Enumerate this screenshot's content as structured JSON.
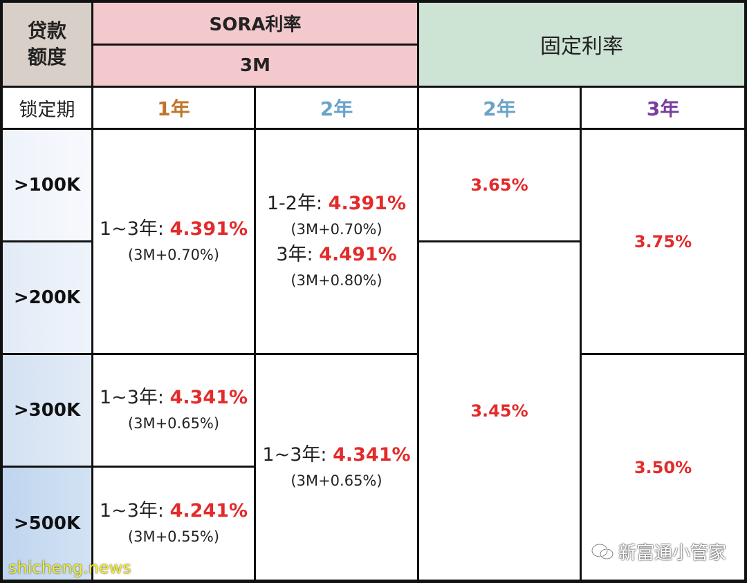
{
  "header": {
    "loan_amount": "贷款\n额度",
    "sora": "SORA利率",
    "sora_sub": "3M",
    "fixed": "固定利率",
    "lock_period": "锁定期"
  },
  "terms": {
    "sora_1y": "1年",
    "sora_2y": "2年",
    "fixed_2y": "2年",
    "fixed_3y": "3年"
  },
  "term_colors": {
    "sora_1y": "#c0752a",
    "sora_2y": "#6aa3c9",
    "fixed_2y": "#6aa3c9",
    "fixed_3y": "#7a3f9e"
  },
  "rows": [
    ">100K",
    ">200K",
    ">300K",
    ">500K"
  ],
  "sora_1y": [
    {
      "period": "1~3年: ",
      "rate": "4.391%",
      "spread": "(3M+0.70%)"
    },
    {
      "period": "1~3年: ",
      "rate": "4.341%",
      "spread": "(3M+0.65%)"
    },
    {
      "period": "1~3年: ",
      "rate": "4.241%",
      "spread": "(3M+0.55%)"
    }
  ],
  "sora_2y": [
    {
      "period": "1-2年: ",
      "rate": "4.391%",
      "spread": "(3M+0.70%)",
      "period2": "3年: ",
      "rate2": "4.491%",
      "spread2": "(3M+0.80%)"
    },
    {
      "period": "1~3年: ",
      "rate": "4.341%",
      "spread": "(3M+0.65%)"
    }
  ],
  "fixed_2y": [
    "3.65%",
    "3.45%"
  ],
  "fixed_3y": [
    "3.75%",
    "3.50%"
  ],
  "watermarks": {
    "brand": "新富通小管家",
    "site": "shicheng.news"
  }
}
